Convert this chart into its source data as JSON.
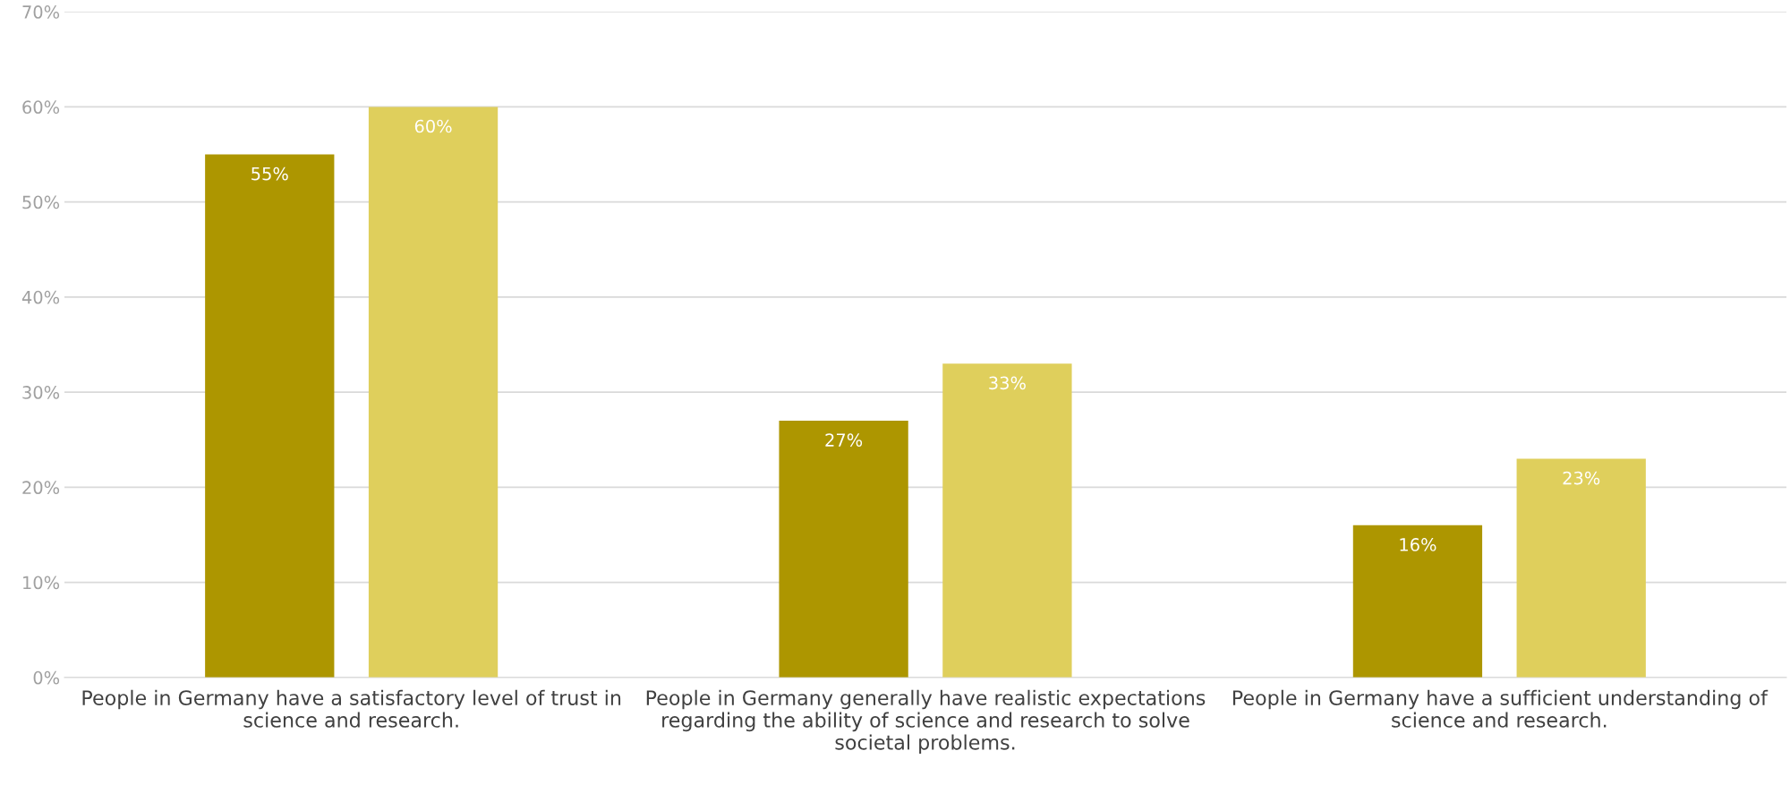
{
  "chart_data": {
    "type": "bar",
    "categories": [
      "People in Germany have a satisfactory level of trust in science and research.",
      "People in Germany generally have realistic expectations regarding the ability of science and research to solve societal problems.",
      "People in Germany have a sufficient understanding of science and research."
    ],
    "series": [
      {
        "color": "#ad9600",
        "values": [
          55,
          27,
          16
        ],
        "value_labels": [
          "55%",
          "27%",
          "16%"
        ]
      },
      {
        "color": "#dfcf5c",
        "values": [
          60,
          33,
          23
        ],
        "value_labels": [
          "60%",
          "33%",
          "23%"
        ]
      }
    ],
    "ylim": [
      0,
      70
    ],
    "yticks": [
      {
        "value": 0,
        "label": "0%"
      },
      {
        "value": 10,
        "label": "10%"
      },
      {
        "value": 20,
        "label": "20%"
      },
      {
        "value": 30,
        "label": "30%"
      },
      {
        "value": 40,
        "label": "40%"
      },
      {
        "value": 50,
        "label": "50%"
      },
      {
        "value": 60,
        "label": "60%"
      },
      {
        "value": 70,
        "label": "70%"
      }
    ],
    "grid": "y",
    "legend": false
  }
}
